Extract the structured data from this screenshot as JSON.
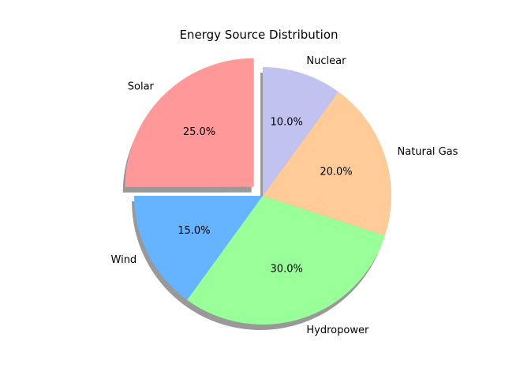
{
  "chart_data": {
    "type": "pie",
    "title": "Energy Source Distribution",
    "slices": [
      {
        "label": "Solar",
        "value": 25.0,
        "pct_label": "25.0%",
        "color": "#ff9999",
        "exploded": true
      },
      {
        "label": "Wind",
        "value": 15.0,
        "pct_label": "15.0%",
        "color": "#66b3ff",
        "exploded": false
      },
      {
        "label": "Hydropower",
        "value": 30.0,
        "pct_label": "30.0%",
        "color": "#99ff99",
        "exploded": false
      },
      {
        "label": "Natural Gas",
        "value": 20.0,
        "pct_label": "20.0%",
        "color": "#ffcc99",
        "exploded": false
      },
      {
        "label": "Nuclear",
        "value": 10.0,
        "pct_label": "10.0%",
        "color": "#c2c2f0",
        "exploded": false
      }
    ],
    "start_angle_deg": 90,
    "direction": "counterclockwise",
    "shadow": true,
    "legend": "none"
  }
}
